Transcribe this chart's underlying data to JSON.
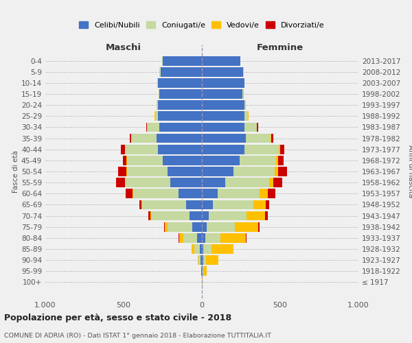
{
  "age_groups": [
    "0-4",
    "5-9",
    "10-14",
    "15-19",
    "20-24",
    "25-29",
    "30-34",
    "35-39",
    "40-44",
    "45-49",
    "50-54",
    "55-59",
    "60-64",
    "65-69",
    "70-74",
    "75-79",
    "80-84",
    "85-89",
    "90-94",
    "95-99",
    "100+"
  ],
  "birth_years": [
    "2013-2017",
    "2008-2012",
    "2003-2007",
    "1998-2002",
    "1993-1997",
    "1988-1992",
    "1983-1987",
    "1978-1982",
    "1973-1977",
    "1968-1972",
    "1963-1967",
    "1958-1962",
    "1953-1957",
    "1948-1952",
    "1943-1947",
    "1938-1942",
    "1933-1937",
    "1928-1932",
    "1923-1927",
    "1918-1922",
    "≤ 1917"
  ],
  "maschi": {
    "celibi": [
      250,
      265,
      280,
      270,
      280,
      280,
      270,
      290,
      280,
      250,
      220,
      200,
      150,
      100,
      80,
      60,
      30,
      15,
      10,
      4,
      2
    ],
    "coniugati": [
      5,
      5,
      5,
      5,
      10,
      20,
      80,
      160,
      210,
      230,
      260,
      290,
      290,
      280,
      240,
      160,
      90,
      35,
      10,
      2,
      0
    ],
    "vedovi": [
      0,
      0,
      0,
      0,
      0,
      1,
      1,
      1,
      1,
      1,
      2,
      2,
      5,
      5,
      10,
      15,
      25,
      15,
      5,
      0,
      0
    ],
    "divorziati": [
      0,
      0,
      0,
      0,
      1,
      2,
      5,
      10,
      25,
      25,
      55,
      55,
      40,
      15,
      10,
      5,
      5,
      0,
      0,
      0,
      0
    ]
  },
  "femmine": {
    "nubili": [
      245,
      265,
      270,
      260,
      270,
      270,
      270,
      280,
      270,
      240,
      200,
      150,
      100,
      70,
      45,
      30,
      20,
      10,
      10,
      5,
      2
    ],
    "coniugate": [
      2,
      3,
      3,
      5,
      10,
      25,
      80,
      160,
      220,
      235,
      265,
      280,
      270,
      260,
      240,
      180,
      100,
      50,
      15,
      2,
      0
    ],
    "vedove": [
      0,
      0,
      0,
      1,
      1,
      2,
      3,
      5,
      8,
      10,
      20,
      25,
      50,
      80,
      120,
      150,
      160,
      140,
      80,
      25,
      3
    ],
    "divorziate": [
      0,
      0,
      0,
      0,
      1,
      3,
      5,
      10,
      30,
      35,
      60,
      60,
      50,
      20,
      15,
      10,
      5,
      2,
      0,
      0,
      0
    ]
  },
  "colors": {
    "celibi_nubili": "#4472c4",
    "coniugati": "#c5d9a0",
    "vedovi": "#ffc000",
    "divorziati": "#cc0000"
  },
  "title": "Popolazione per età, sesso e stato civile - 2018",
  "subtitle": "COMUNE DI ADRIA (RO) - Dati ISTAT 1° gennaio 2018 - Elaborazione TUTTITALIA.IT",
  "xlabel_maschi": "Maschi",
  "xlabel_femmine": "Femmine",
  "ylabel_left": "Fasce di età",
  "ylabel_right": "Anni di nascita",
  "xlim": 1000,
  "background_color": "#f0f0f0",
  "legend_labels": [
    "Celibi/Nubili",
    "Coniugati/e",
    "Vedovi/e",
    "Divorziati/e"
  ]
}
